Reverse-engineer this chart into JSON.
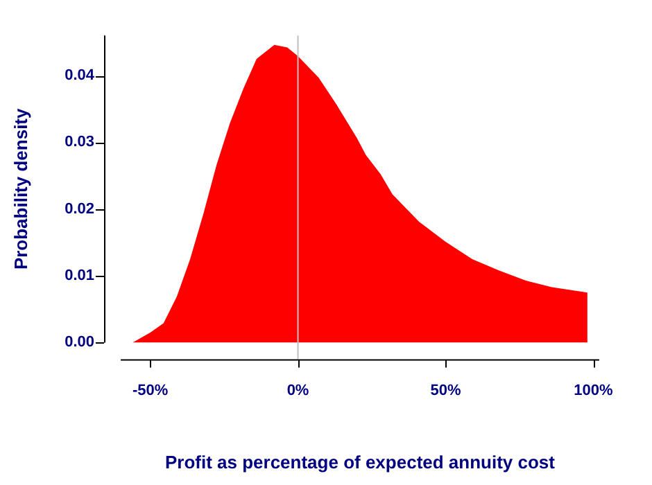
{
  "chart_data": {
    "type": "area",
    "xlabel": "Profit as percentage of expected annuity cost",
    "ylabel": "Probability density",
    "series": [
      {
        "color": "#ff0000",
        "x": [
          -56,
          -50,
          -45.5,
          -41,
          -36.5,
          -32,
          -27.5,
          -23,
          -18.5,
          -14,
          -8,
          -3.6,
          0,
          7,
          13,
          20,
          23,
          28,
          32,
          41,
          50,
          59,
          68,
          77,
          86,
          98
        ],
        "values": [
          0,
          0.0015,
          0.0029,
          0.0069,
          0.0125,
          0.0193,
          0.0267,
          0.0329,
          0.038,
          0.0425,
          0.0446,
          0.0442,
          0.0429,
          0.0397,
          0.0357,
          0.0306,
          0.0281,
          0.0252,
          0.0222,
          0.0181,
          0.0151,
          0.0125,
          0.0108,
          0.0093,
          0.0083,
          0.0075
        ]
      }
    ],
    "xlim": [
      -60,
      102
    ],
    "ylim": [
      0,
      0.046
    ],
    "xticks": [
      {
        "value": -50,
        "label": "-50%"
      },
      {
        "value": 0,
        "label": "0%"
      },
      {
        "value": 50,
        "label": "50%"
      },
      {
        "value": 100,
        "label": "100%"
      }
    ],
    "yticks": [
      {
        "value": 0,
        "label": "0.00"
      },
      {
        "value": 0.01,
        "label": "0.01"
      },
      {
        "value": 0.02,
        "label": "0.02"
      },
      {
        "value": 0.03,
        "label": "0.03"
      },
      {
        "value": 0.04,
        "label": "0.04"
      }
    ],
    "ref_lines": [
      {
        "axis": "x",
        "value": 0,
        "color": "#c0c0c0"
      }
    ],
    "grid": false,
    "legend": false
  }
}
